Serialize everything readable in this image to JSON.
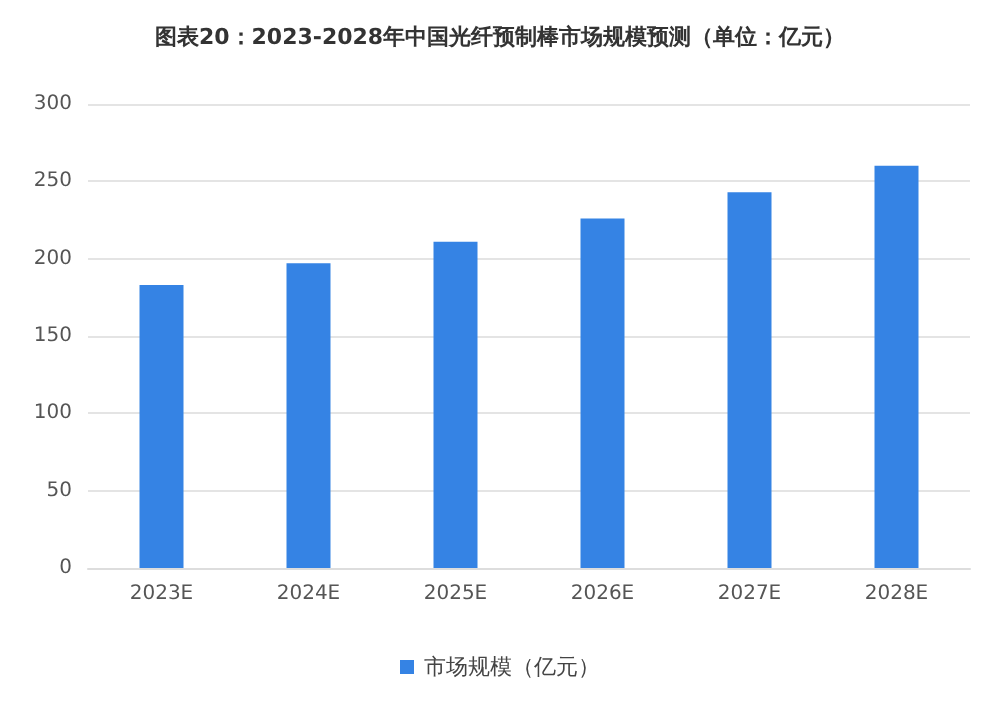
{
  "chart_data": {
    "type": "bar",
    "title": "图表20：2023-2028年中国光纤预制棒市场规模预测（单位：亿元）",
    "categories": [
      "2023E",
      "2024E",
      "2025E",
      "2026E",
      "2027E",
      "2028E"
    ],
    "series": [
      {
        "name": "市场规模（亿元）",
        "color": "#3583e4",
        "values": [
          183,
          197,
          211,
          226,
          243,
          260
        ]
      }
    ],
    "ylim": [
      0,
      300
    ],
    "yticks": [
      0,
      50,
      100,
      150,
      200,
      250,
      300
    ],
    "grid": "y",
    "legend": "bottom"
  }
}
